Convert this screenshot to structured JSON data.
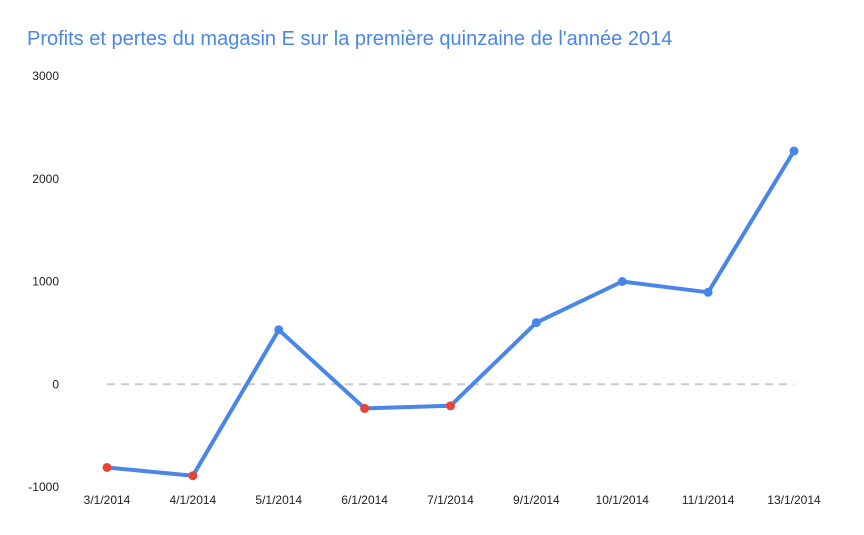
{
  "chart_data": {
    "type": "line",
    "title": "Profits et pertes du magasin E sur la première quinzaine de l'année 2014",
    "xlabel": "",
    "ylabel": "",
    "categories": [
      "3/1/2014",
      "4/1/2014",
      "5/1/2014",
      "6/1/2014",
      "7/1/2014",
      "9/1/2014",
      "10/1/2014",
      "11/1/2014",
      "13/1/2014"
    ],
    "values": [
      -810,
      -890,
      530,
      -235,
      -210,
      600,
      1000,
      895,
      2270
    ],
    "ylim": [
      -1000,
      3000
    ],
    "yticks": [
      3000,
      2000,
      1000,
      0,
      -1000
    ],
    "grid": false,
    "zero_line": true,
    "legend": "none",
    "colors": {
      "line": "#4a86e8",
      "positive_point": "#4a86e8",
      "negative_point": "#e84335",
      "title": "#4a86e8",
      "zero_line": "#cccccc"
    }
  }
}
